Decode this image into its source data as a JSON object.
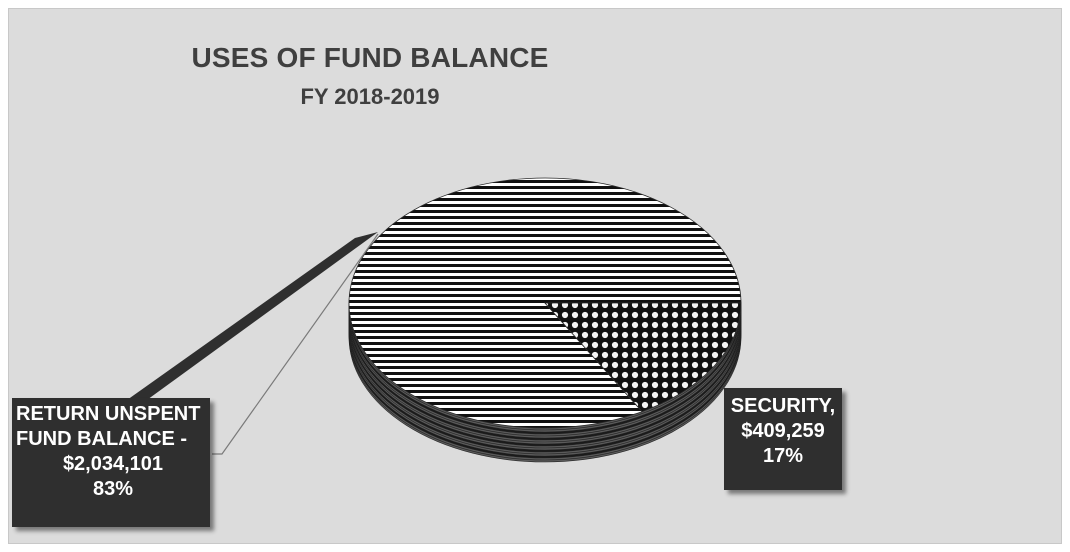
{
  "chart_data": {
    "type": "pie",
    "title": "USES OF FUND BALANCE",
    "subtitle": "FY 2018-2019",
    "categories": [
      "RETURN UNSPENT FUND BALANCE",
      "SECURITY"
    ],
    "values": [
      2034101,
      409259
    ],
    "percentages": [
      83,
      17
    ],
    "labels": [
      {
        "line1": "RETURN UNSPENT",
        "line2": "FUND BALANCE -",
        "line3": "$2,034,101",
        "line4": "83%"
      },
      {
        "line1": "SECURITY,",
        "line2": "$409,259",
        "line3": "17%"
      }
    ],
    "style": "3d",
    "legend": "none"
  },
  "colors": {
    "background": "#dcdcdc",
    "title": "#3f3f3f",
    "label_box": "#2f2f2f",
    "label_text": "#ffffff",
    "stripe_dark": "#111111",
    "stripe_light": "#ffffff"
  }
}
